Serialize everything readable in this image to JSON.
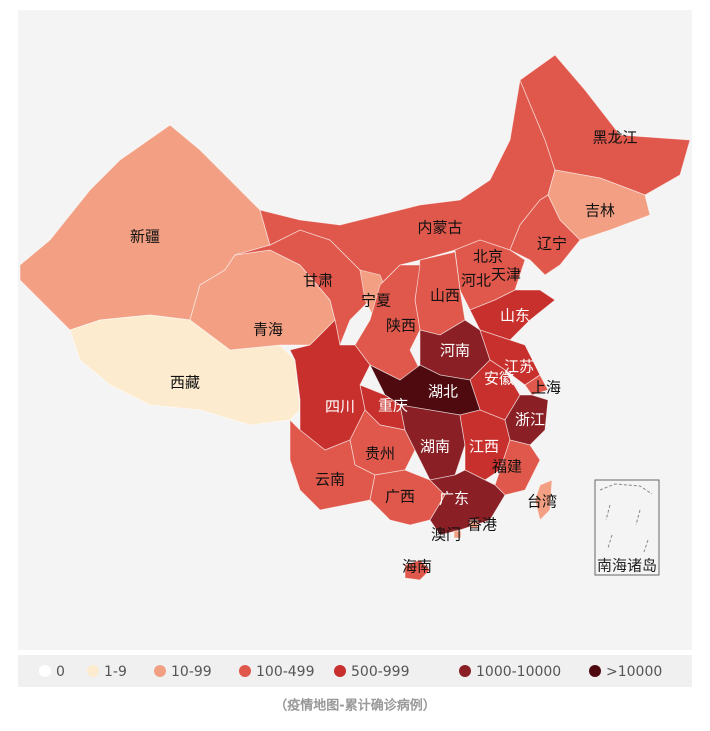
{
  "map": {
    "provinces": [
      {
        "name": "新疆",
        "color": "#f29f83"
      },
      {
        "name": "西藏",
        "color": "#fdebd0"
      },
      {
        "name": "青海",
        "color": "#f29f83"
      },
      {
        "name": "甘肃",
        "color": "#e0584b"
      },
      {
        "name": "内蒙古",
        "color": "#e0584b"
      },
      {
        "name": "黑龙江",
        "color": "#e0584b"
      },
      {
        "name": "吉林",
        "color": "#f29f83"
      },
      {
        "name": "辽宁",
        "color": "#e0584b"
      },
      {
        "name": "北京",
        "color": "#e0584b"
      },
      {
        "name": "天津",
        "color": "#e0584b"
      },
      {
        "name": "河北",
        "color": "#e0584b"
      },
      {
        "name": "山西",
        "color": "#e0584b"
      },
      {
        "name": "宁夏",
        "color": "#f29f83"
      },
      {
        "name": "陕西",
        "color": "#e0584b"
      },
      {
        "name": "山东",
        "color": "#c8302d"
      },
      {
        "name": "河南",
        "color": "#8a1f25"
      },
      {
        "name": "江苏",
        "color": "#c8302d"
      },
      {
        "name": "安徽",
        "color": "#c8302d"
      },
      {
        "name": "上海",
        "color": "#e0584b"
      },
      {
        "name": "湖北",
        "color": "#4e0a0f"
      },
      {
        "name": "重庆",
        "color": "#c8302d"
      },
      {
        "name": "四川",
        "color": "#c8302d"
      },
      {
        "name": "贵州",
        "color": "#e0584b"
      },
      {
        "name": "云南",
        "color": "#e0584b"
      },
      {
        "name": "湖南",
        "color": "#8a1f25"
      },
      {
        "name": "江西",
        "color": "#c8302d"
      },
      {
        "name": "浙江",
        "color": "#8a1f25"
      },
      {
        "name": "福建",
        "color": "#e0584b"
      },
      {
        "name": "广西",
        "color": "#e0584b"
      },
      {
        "name": "广东",
        "color": "#8a1f25"
      },
      {
        "name": "香港",
        "color": "#f29f83"
      },
      {
        "name": "澳门",
        "color": "#f29f83"
      },
      {
        "name": "海南",
        "color": "#e0584b"
      },
      {
        "name": "台湾",
        "color": "#f29f83"
      }
    ],
    "inset_label": "南海诸岛"
  },
  "legend": [
    {
      "label": "0",
      "color": "#ffffff"
    },
    {
      "label": "1-9",
      "color": "#fdebd0"
    },
    {
      "label": "10-99",
      "color": "#f29f83"
    },
    {
      "label": "100-499",
      "color": "#e0584b"
    },
    {
      "label": "500-999",
      "color": "#c8302d"
    },
    {
      "label": "1000-10000",
      "color": "#8a1f25"
    },
    {
      "label": ">10000",
      "color": "#4e0a0f"
    }
  ],
  "caption": "（疫情地图-累计确诊病例）"
}
